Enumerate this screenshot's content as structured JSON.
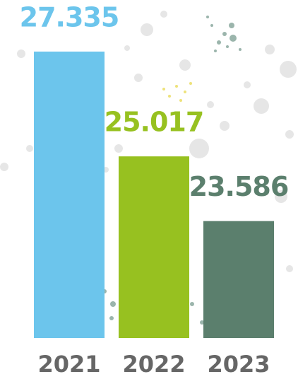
{
  "chart_data": {
    "type": "bar",
    "categories": [
      "2021",
      "2022",
      "2023"
    ],
    "values": [
      27.335,
      25.017,
      23.586
    ],
    "colors": [
      "#6cc5ec",
      "#97c120",
      "#5b7f6d"
    ],
    "ylim": [
      21,
      27.6
    ]
  }
}
